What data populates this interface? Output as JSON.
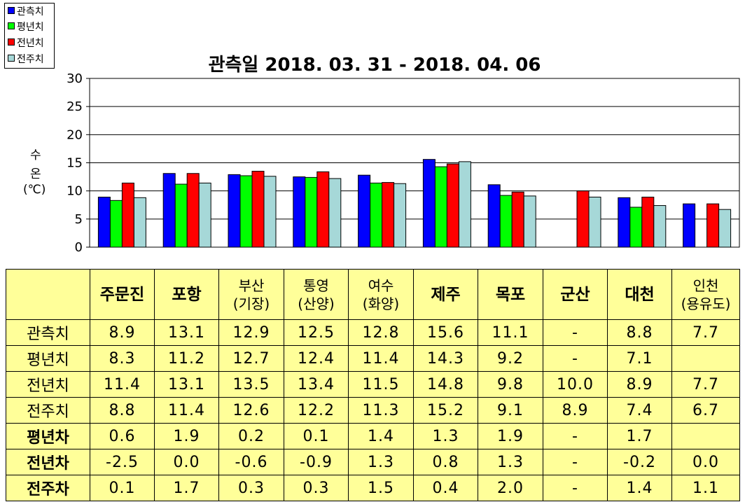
{
  "title": "관측일 2018. 03. 31 - 2018. 04. 06",
  "legend": [
    {
      "label": "관측치",
      "color": "#0000ff"
    },
    {
      "label": "평년치",
      "color": "#00ff00"
    },
    {
      "label": "전년치",
      "color": "#ff0000"
    },
    {
      "label": "전주치",
      "color": "#a6d8d8"
    }
  ],
  "ylabel": {
    "chars": [
      "수",
      "온"
    ],
    "unit": "(℃)"
  },
  "chart_data": {
    "type": "bar",
    "title": "관측일 2018. 03. 31 - 2018. 04. 06",
    "ylabel": "수온 (℃)",
    "ylim": [
      0,
      30
    ],
    "yticks": [
      "0",
      "5",
      "10",
      "15",
      "20",
      "25",
      "30"
    ],
    "categories": [
      "주문진",
      "포항",
      "부산(기장)",
      "통영(산양)",
      "여수(화양)",
      "제주",
      "목포",
      "군산",
      "대천",
      "인천(용유도)"
    ],
    "series": [
      {
        "name": "관측치",
        "color": "#0000ff",
        "values": [
          8.9,
          13.1,
          12.9,
          12.5,
          12.8,
          15.6,
          11.1,
          null,
          8.8,
          7.7
        ]
      },
      {
        "name": "평년치",
        "color": "#00ff00",
        "values": [
          8.3,
          11.2,
          12.7,
          12.4,
          11.4,
          14.3,
          9.2,
          null,
          7.1,
          null
        ]
      },
      {
        "name": "전년치",
        "color": "#ff0000",
        "values": [
          11.4,
          13.1,
          13.5,
          13.4,
          11.5,
          14.8,
          9.8,
          10.0,
          8.9,
          7.7
        ]
      },
      {
        "name": "전주치",
        "color": "#a6d8d8",
        "values": [
          8.8,
          11.4,
          12.6,
          12.2,
          11.3,
          15.2,
          9.1,
          8.9,
          7.4,
          6.7
        ]
      }
    ],
    "grid": true,
    "legend_position": "top-left"
  },
  "table": {
    "columns": [
      {
        "line1": "주문진",
        "line2": ""
      },
      {
        "line1": "포항",
        "line2": ""
      },
      {
        "line1": "부산",
        "line2": "(기장)"
      },
      {
        "line1": "통영",
        "line2": "(산양)"
      },
      {
        "line1": "여수",
        "line2": "(화양)"
      },
      {
        "line1": "제주",
        "line2": ""
      },
      {
        "line1": "목포",
        "line2": ""
      },
      {
        "line1": "군산",
        "line2": ""
      },
      {
        "line1": "대천",
        "line2": ""
      },
      {
        "line1": "인천",
        "line2": "(용유도)"
      }
    ],
    "rows": [
      {
        "label": "관측치",
        "bold": false,
        "values": [
          "8.9",
          "13.1",
          "12.9",
          "12.5",
          "12.8",
          "15.6",
          "11.1",
          "-",
          "8.8",
          "7.7"
        ]
      },
      {
        "label": "평년치",
        "bold": false,
        "values": [
          "8.3",
          "11.2",
          "12.7",
          "12.4",
          "11.4",
          "14.3",
          "9.2",
          "-",
          "7.1",
          ""
        ]
      },
      {
        "label": "전년치",
        "bold": false,
        "values": [
          "11.4",
          "13.1",
          "13.5",
          "13.4",
          "11.5",
          "14.8",
          "9.8",
          "10.0",
          "8.9",
          "7.7"
        ]
      },
      {
        "label": "전주치",
        "bold": false,
        "values": [
          "8.8",
          "11.4",
          "12.6",
          "12.2",
          "11.3",
          "15.2",
          "9.1",
          "8.9",
          "7.4",
          "6.7"
        ]
      },
      {
        "label": "평년차",
        "bold": true,
        "values": [
          "0.6",
          "1.9",
          "0.2",
          "0.1",
          "1.4",
          "1.3",
          "1.9",
          "-",
          "1.7",
          ""
        ]
      },
      {
        "label": "전년차",
        "bold": true,
        "values": [
          "-2.5",
          "0.0",
          "-0.6",
          "-0.9",
          "1.3",
          "0.8",
          "1.3",
          "-",
          "-0.2",
          "0.0"
        ]
      },
      {
        "label": "전주차",
        "bold": true,
        "values": [
          "0.1",
          "1.7",
          "0.3",
          "0.3",
          "1.5",
          "0.4",
          "2.0",
          "-",
          "1.4",
          "1.1"
        ]
      }
    ]
  }
}
